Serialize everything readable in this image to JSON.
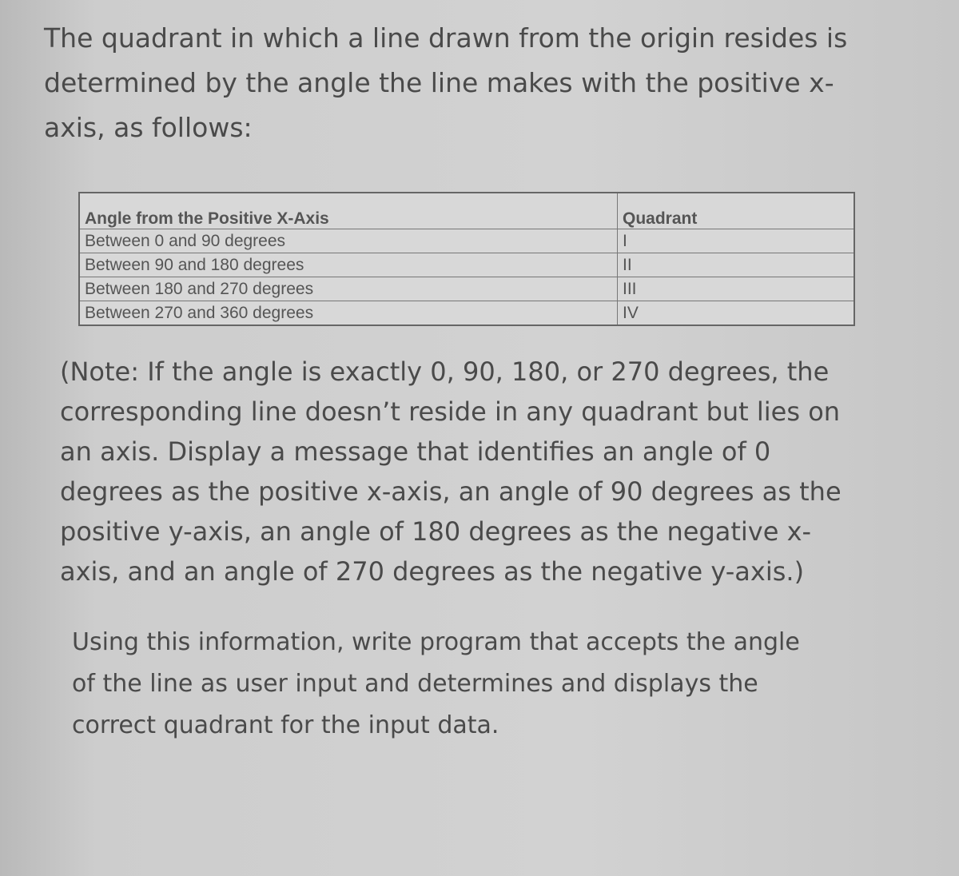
{
  "intro": {
    "lines": [
      "The quadrant in which a line drawn from the origin resides is",
      "determined by the angle the line makes with the positive x-",
      "axis, as follows:"
    ]
  },
  "table": {
    "header": [
      "Angle from the Positive X-Axis",
      "Quadrant"
    ],
    "rows": [
      [
        "Between 0 and 90 degrees",
        "I"
      ],
      [
        "Between 90 and 180 degrees",
        "II"
      ],
      [
        "Between 180 and 270 degrees",
        "III"
      ],
      [
        "Between 270 and 360 degrees",
        "IV"
      ]
    ]
  },
  "note": {
    "lines": [
      "(Note: If the angle is exactly 0, 90, 180, or 270 degrees, the",
      "corresponding line doesn’t reside in any quadrant but lies on",
      "an axis. Display a message that identifies an angle of 0",
      "degrees as the positive x-axis, an angle of 90 degrees as the",
      "positive y-axis, an angle of 180 degrees as the negative x-",
      "axis, and an angle of 270 degrees as the negative y-axis.)"
    ]
  },
  "instruction": {
    "lines": [
      "Using this information, write program that accepts the angle",
      "of the line as user input and determines and displays the",
      "correct quadrant for the input data."
    ]
  }
}
